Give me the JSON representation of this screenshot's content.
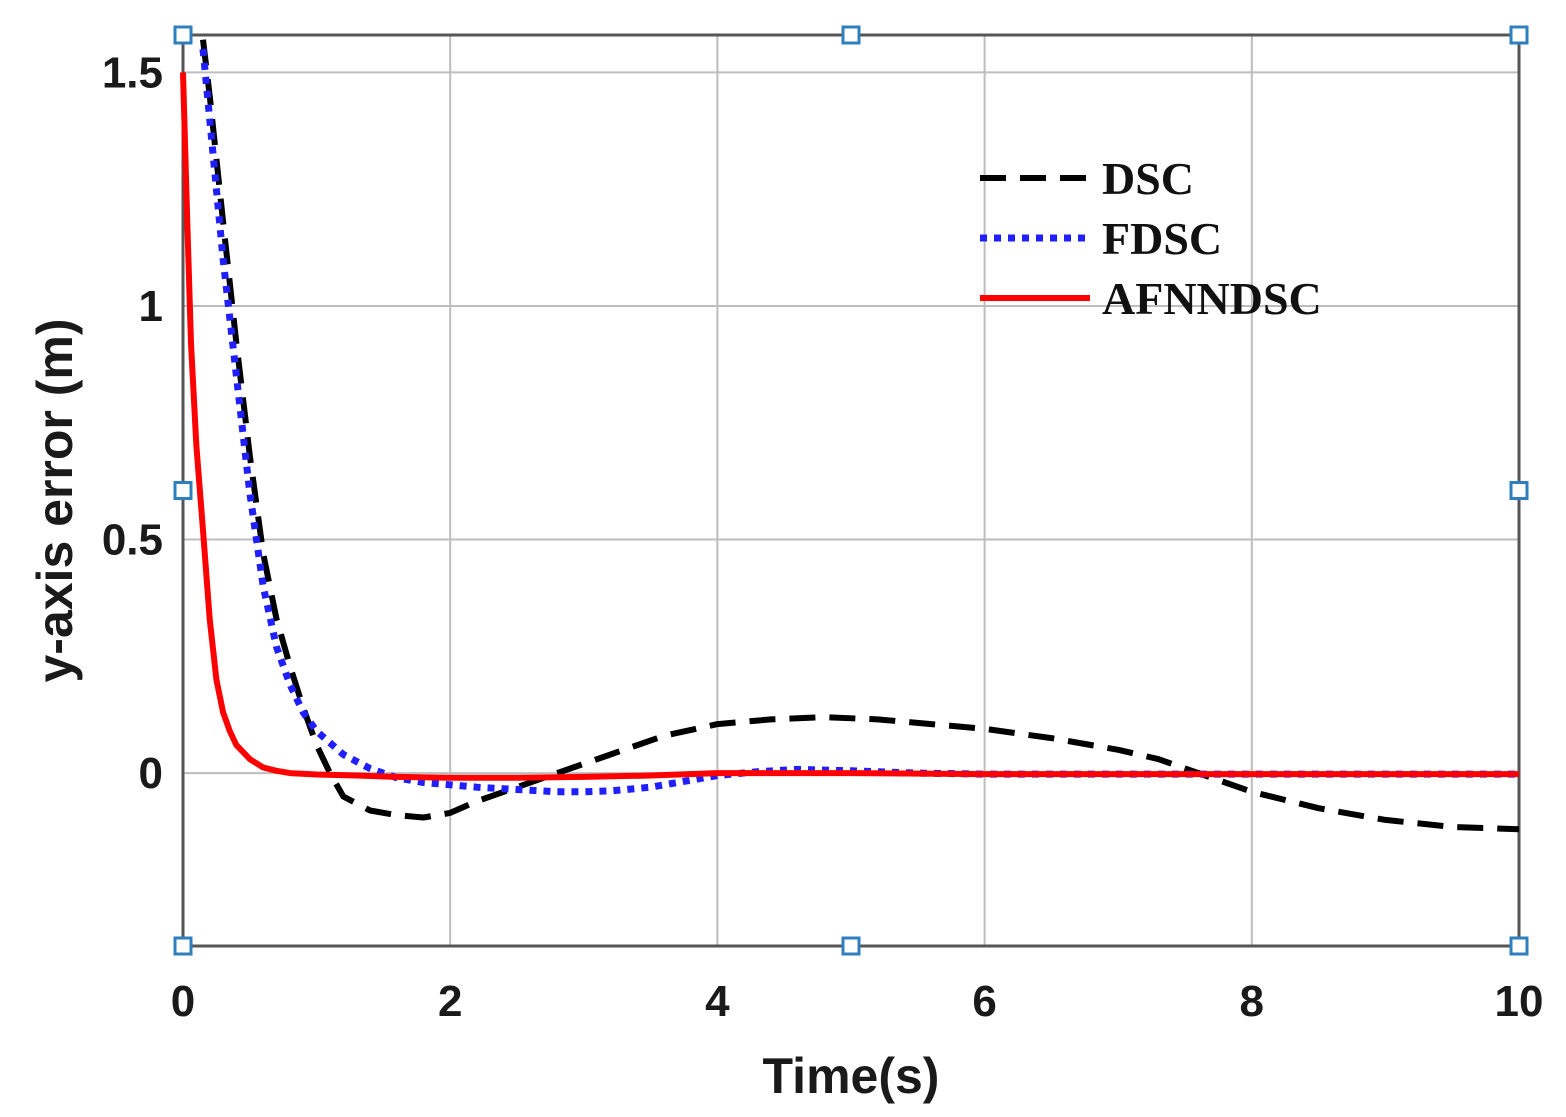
{
  "chart_data": {
    "type": "line",
    "xlabel": "Time(s)",
    "ylabel": "y-axis error (m)",
    "xlim": [
      0,
      10
    ],
    "ylim": [
      -0.37,
      1.58
    ],
    "xticks": [
      0,
      2,
      4,
      6,
      8,
      10
    ],
    "xtick_labels": [
      "0",
      "2",
      "4",
      "6",
      "8",
      "10"
    ],
    "yticks": [
      0,
      0.5,
      1,
      1.5
    ],
    "ytick_labels": [
      "0",
      "0.5",
      "1",
      "1.5"
    ],
    "grid": true,
    "legend_position": "top-right",
    "series": [
      {
        "name": "DSC",
        "color": "#000000",
        "style": "dashed",
        "x": [
          0.15,
          0.2,
          0.3,
          0.4,
          0.5,
          0.6,
          0.7,
          0.8,
          0.9,
          1.0,
          1.1,
          1.2,
          1.4,
          1.6,
          1.8,
          2.0,
          2.2,
          2.5,
          2.8,
          3.2,
          3.6,
          4.0,
          4.4,
          4.8,
          5.2,
          5.6,
          6.0,
          6.5,
          7.0,
          7.3,
          7.6,
          8.0,
          8.5,
          9.0,
          9.5,
          10.0
        ],
        "y": [
          1.57,
          1.45,
          1.18,
          0.92,
          0.68,
          0.47,
          0.33,
          0.23,
          0.14,
          0.06,
          0.0,
          -0.05,
          -0.08,
          -0.09,
          -0.095,
          -0.085,
          -0.06,
          -0.03,
          0.0,
          0.04,
          0.08,
          0.105,
          0.115,
          0.12,
          0.115,
          0.105,
          0.095,
          0.075,
          0.05,
          0.03,
          0.0,
          -0.04,
          -0.075,
          -0.1,
          -0.115,
          -0.12
        ]
      },
      {
        "name": "FDSC",
        "color": "#1f1fff",
        "style": "dotted",
        "x": [
          0.15,
          0.2,
          0.3,
          0.4,
          0.5,
          0.6,
          0.7,
          0.8,
          0.9,
          1.0,
          1.2,
          1.4,
          1.6,
          1.8,
          2.0,
          2.2,
          2.5,
          2.8,
          3.0,
          3.2,
          3.5,
          3.8,
          4.0,
          4.3,
          4.6,
          5.0,
          5.5,
          6.0,
          7.0,
          8.0,
          9.0,
          10.0
        ],
        "y": [
          1.55,
          1.4,
          1.1,
          0.85,
          0.6,
          0.4,
          0.27,
          0.19,
          0.13,
          0.09,
          0.04,
          0.01,
          -0.01,
          -0.02,
          -0.025,
          -0.03,
          -0.035,
          -0.04,
          -0.04,
          -0.038,
          -0.03,
          -0.015,
          -0.005,
          0.003,
          0.008,
          0.005,
          0.0,
          -0.002,
          -0.002,
          -0.002,
          -0.002,
          -0.002
        ]
      },
      {
        "name": "AFNNDSC",
        "color": "#ff0000",
        "style": "solid",
        "x": [
          0.0,
          0.03,
          0.06,
          0.1,
          0.15,
          0.2,
          0.25,
          0.3,
          0.35,
          0.4,
          0.5,
          0.6,
          0.7,
          0.8,
          1.0,
          1.3,
          1.6,
          2.0,
          2.5,
          3.0,
          3.5,
          4.0,
          5.0,
          6.0,
          7.0,
          8.0,
          9.0,
          10.0
        ],
        "y": [
          1.5,
          1.2,
          0.92,
          0.7,
          0.52,
          0.33,
          0.2,
          0.13,
          0.09,
          0.06,
          0.03,
          0.012,
          0.005,
          0.0,
          -0.003,
          -0.005,
          -0.008,
          -0.01,
          -0.01,
          -0.008,
          -0.005,
          0.0,
          0.0,
          -0.002,
          -0.002,
          -0.002,
          -0.002,
          -0.002
        ]
      }
    ]
  }
}
